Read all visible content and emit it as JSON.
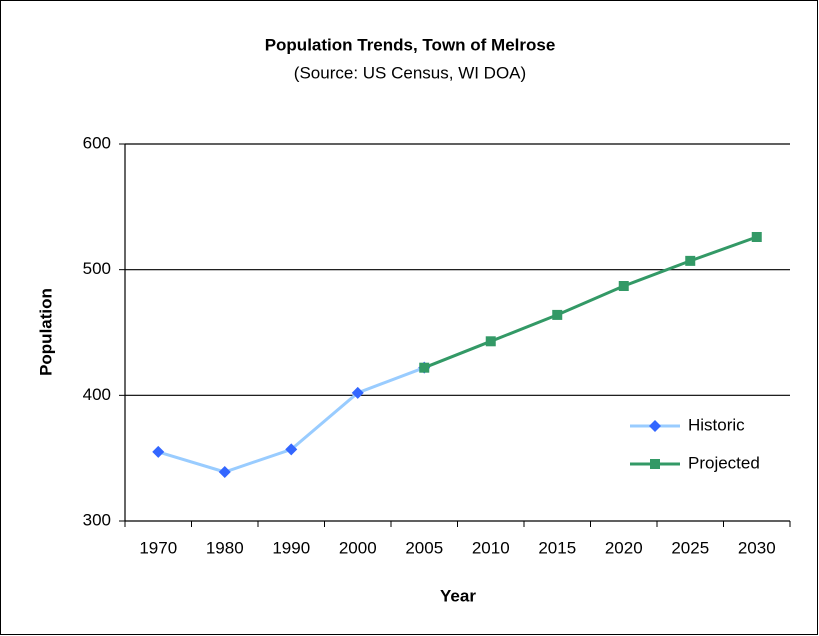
{
  "chart_data": {
    "type": "line",
    "title": "Population Trends, Town of Melrose",
    "subtitle": "(Source: US Census, WI DOA)",
    "x_label": "Year",
    "y_label": "Population",
    "categories": [
      "1970",
      "1980",
      "1990",
      "2000",
      "2005",
      "2010",
      "2015",
      "2020",
      "2025",
      "2030"
    ],
    "series": [
      {
        "name": "Historic",
        "color": "#99ccff",
        "marker_color": "#3366ff",
        "marker": "diamond",
        "values": [
          355,
          339,
          357,
          402,
          422,
          null,
          null,
          null,
          null,
          null
        ]
      },
      {
        "name": "Projected",
        "color": "#339966",
        "marker_color": "#339966",
        "marker": "square",
        "values": [
          null,
          null,
          null,
          null,
          422,
          443,
          464,
          487,
          507,
          526
        ]
      }
    ],
    "ylim": [
      300,
      600
    ],
    "yticks": [
      300,
      400,
      500,
      600
    ],
    "grid": true,
    "legend": "right"
  }
}
